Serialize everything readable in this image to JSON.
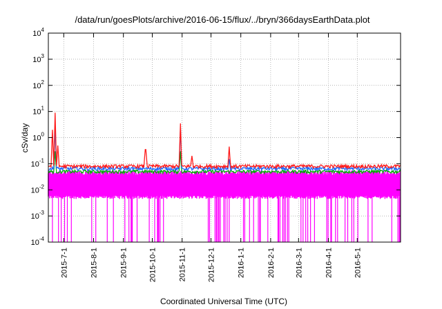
{
  "chart_data": {
    "type": "line",
    "title": "/data/run/goesPlots/archive/2016-06-15/flux/../bryn/366daysEarthData.plot",
    "xlabel": "Coordinated Universal Time (UTC)",
    "ylabel": "cSv/day",
    "yscale": "log",
    "ylim": [
      0.0001,
      10000
    ],
    "xlim": [
      "2015-06-15",
      "2016-06-15"
    ],
    "grid": true,
    "legend": "none",
    "y_ticks": [
      {
        "base": "10",
        "exp": "4",
        "value": 10000
      },
      {
        "base": "10",
        "exp": "3",
        "value": 1000
      },
      {
        "base": "10",
        "exp": "2",
        "value": 100
      },
      {
        "base": "10",
        "exp": "1",
        "value": 10
      },
      {
        "base": "10",
        "exp": "0",
        "value": 1
      },
      {
        "base": "10",
        "exp": "-1",
        "value": 0.1
      },
      {
        "base": "10",
        "exp": "-2",
        "value": 0.01
      },
      {
        "base": "10",
        "exp": "-3",
        "value": 0.001
      },
      {
        "base": "10",
        "exp": "-4",
        "value": 0.0001
      }
    ],
    "x_ticks": [
      {
        "label": "2015-7-1",
        "date": "2015-07-01"
      },
      {
        "label": "2015-8-1",
        "date": "2015-08-01"
      },
      {
        "label": "2015-9-1",
        "date": "2015-09-01"
      },
      {
        "label": "2015-10-1",
        "date": "2015-10-01"
      },
      {
        "label": "2015-11-1",
        "date": "2015-11-01"
      },
      {
        "label": "2015-12-1",
        "date": "2015-12-01"
      },
      {
        "label": "2016-1-1",
        "date": "2016-01-01"
      },
      {
        "label": "2016-2-1",
        "date": "2016-02-01"
      },
      {
        "label": "2016-3-1",
        "date": "2016-03-01"
      },
      {
        "label": "2016-4-1",
        "date": "2016-04-01"
      },
      {
        "label": "2016-5-1",
        "date": "2016-05-01"
      }
    ],
    "series": [
      {
        "color": "#ff1a1a",
        "baseline": 0.08,
        "peaks": [
          {
            "x": "2015-06-19",
            "y": 2.0
          },
          {
            "x": "2015-06-22",
            "y": 9.0
          },
          {
            "x": "2015-06-25",
            "y": 0.5
          },
          {
            "x": "2015-09-24",
            "y": 0.35
          },
          {
            "x": "2015-10-30",
            "y": 3.5
          },
          {
            "x": "2015-11-11",
            "y": 0.2
          },
          {
            "x": "2015-12-20",
            "y": 0.45
          }
        ]
      },
      {
        "color": "#1a66ff",
        "baseline": 0.065,
        "peaks": [
          {
            "x": "2015-06-22",
            "y": 2.5
          },
          {
            "x": "2015-10-30",
            "y": 2.5
          },
          {
            "x": "2015-12-20",
            "y": 0.15
          }
        ]
      },
      {
        "color": "#00aa00",
        "baseline": 0.05,
        "peaks": [
          {
            "x": "2015-06-22",
            "y": 0.3
          },
          {
            "x": "2015-10-30",
            "y": 0.3
          }
        ]
      },
      {
        "color": "#ff00ff",
        "band": [
          0.005,
          0.05
        ],
        "dropouts_to": 0.0001
      }
    ]
  }
}
